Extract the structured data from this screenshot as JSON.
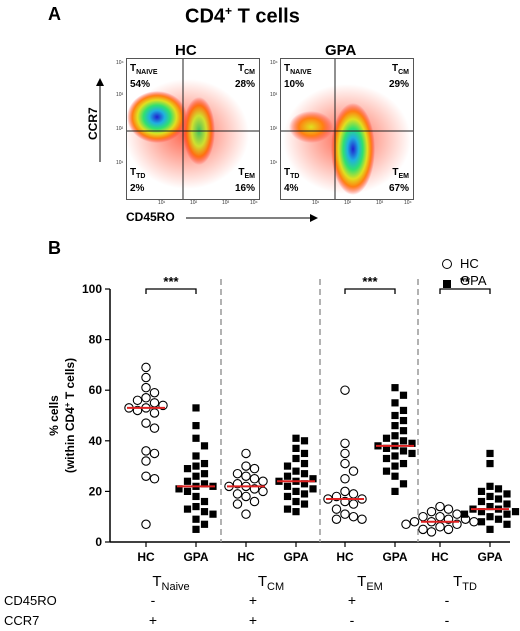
{
  "panel_a": {
    "letter": "A",
    "title_pre": "CD4",
    "title_sup": "+",
    "title_post": " T cells",
    "x_axis": "CD45RO",
    "y_axis": "CCR7",
    "y_ticks": [
      "10⁴",
      "10³",
      "10²",
      "10¹"
    ],
    "x_ticks": [
      "10¹",
      "10²",
      "10³",
      "10⁴"
    ],
    "plots": [
      {
        "title": "HC",
        "q_tl": {
          "name": "T",
          "sub": "NAIVE",
          "pct": "54%"
        },
        "q_tr": {
          "name": "T",
          "sub": "CM",
          "pct": "28%"
        },
        "q_bl": {
          "name": "T",
          "sub": "TD",
          "pct": "2%"
        },
        "q_br": {
          "name": "T",
          "sub": "EM",
          "pct": "16%"
        }
      },
      {
        "title": "GPA",
        "q_tl": {
          "name": "T",
          "sub": "NAIVE",
          "pct": "10%"
        },
        "q_tr": {
          "name": "T",
          "sub": "CM",
          "pct": "29%"
        },
        "q_bl": {
          "name": "T",
          "sub": "TD",
          "pct": "4%"
        },
        "q_br": {
          "name": "T",
          "sub": "EM",
          "pct": "67%"
        }
      }
    ]
  },
  "panel_b": {
    "letter": "B"
  },
  "legend": {
    "hc": "HC",
    "gpa": "GPA"
  },
  "bottom_labels": {
    "cd45ro": "CD45RO",
    "ccr7": "CCR7"
  },
  "colors": {
    "median": "#e02020",
    "separator": "#999999"
  },
  "chart_data": {
    "type": "scatter",
    "ylabel_line1": "% cells",
    "ylabel_pre": "(within CD4",
    "ylabel_sup": "+",
    "ylabel_post": " T cells)",
    "ylim": [
      0,
      100
    ],
    "yticks": [
      0,
      20,
      40,
      60,
      80,
      100
    ],
    "groups": [
      {
        "label": "T",
        "sub": "Naive",
        "cd45ro": "-",
        "ccr7": "+",
        "significance": "***",
        "hc": [
          69,
          65,
          61,
          59,
          57,
          56,
          55,
          54,
          53,
          53,
          52,
          51,
          47,
          45,
          36,
          35,
          32,
          26,
          25,
          7
        ],
        "gpa": [
          53,
          46,
          41,
          38,
          34,
          31,
          30,
          29,
          27,
          26,
          24,
          23,
          22,
          22,
          21,
          20,
          18,
          16,
          14,
          13,
          12,
          11,
          9,
          7,
          5
        ],
        "hc_median": 53,
        "gpa_median": 22
      },
      {
        "label": "T",
        "sub": "CM",
        "cd45ro": "+",
        "ccr7": "+",
        "significance": "",
        "hc": [
          35,
          30,
          29,
          27,
          26,
          25,
          24,
          23,
          22,
          22,
          21,
          20,
          19,
          18,
          16,
          15,
          11
        ],
        "gpa": [
          41,
          40,
          37,
          35,
          33,
          31,
          30,
          28,
          27,
          26,
          25,
          24,
          24,
          23,
          22,
          21,
          20,
          19,
          18,
          16,
          15,
          13,
          12
        ],
        "hc_median": 22,
        "gpa_median": 24
      },
      {
        "label": "T",
        "sub": "EM",
        "cd45ro": "+",
        "ccr7": "-",
        "significance": "***",
        "hc": [
          60,
          39,
          35,
          31,
          28,
          25,
          20,
          19,
          18,
          17,
          17,
          16,
          15,
          13,
          11,
          10,
          9,
          9
        ],
        "gpa": [
          61,
          58,
          55,
          52,
          50,
          48,
          46,
          44,
          42,
          41,
          40,
          39,
          38,
          38,
          37,
          36,
          35,
          34,
          33,
          31,
          30,
          28,
          26,
          23,
          20
        ],
        "hc_median": 17,
        "gpa_median": 38
      },
      {
        "label": "T",
        "sub": "TD",
        "cd45ro": "-",
        "ccr7": "-",
        "significance": "**",
        "hc": [
          14,
          13,
          12,
          11,
          10,
          10,
          9,
          9,
          8,
          8,
          8,
          7,
          7,
          6,
          5,
          5,
          4
        ],
        "gpa": [
          35,
          31,
          22,
          21,
          20,
          19,
          18,
          17,
          16,
          15,
          14,
          13,
          13,
          12,
          12,
          11,
          11,
          10,
          10,
          9,
          8,
          7,
          5
        ],
        "hc_median": 8,
        "gpa_median": 13
      }
    ],
    "xticklabels": [
      "HC",
      "GPA"
    ],
    "series": [
      {
        "name": "HC",
        "marker": "open-circle"
      },
      {
        "name": "GPA",
        "marker": "filled-square"
      }
    ]
  }
}
